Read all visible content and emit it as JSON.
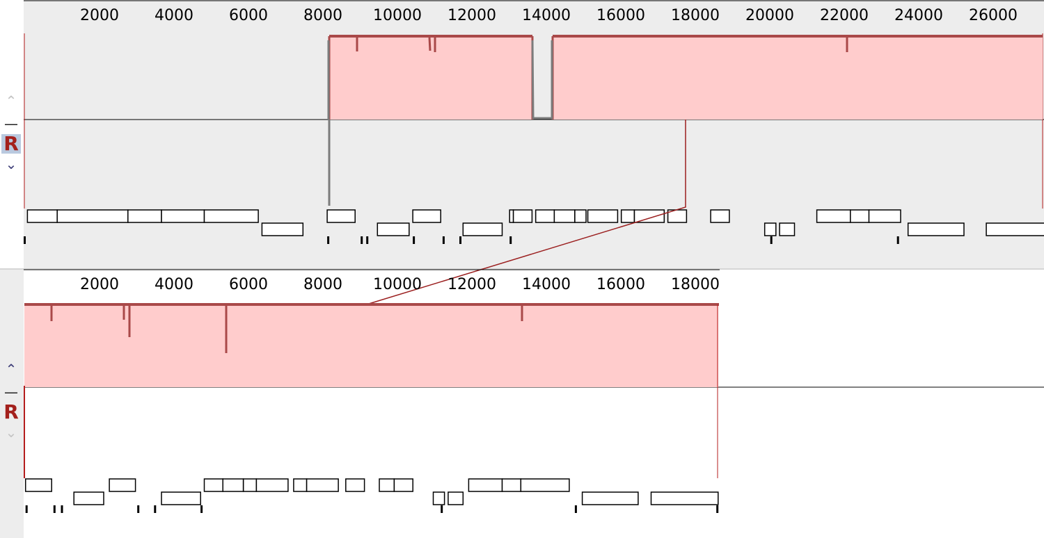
{
  "genomes": [
    {
      "genome_length": 27400,
      "ruler_labels": [
        "2000",
        "4000",
        "6000",
        "8000",
        "10000",
        "12000",
        "14000",
        "16000",
        "18000",
        "20000",
        "22000",
        "24000",
        "26000"
      ],
      "controls": {
        "up_icon": "chevron-up-icon",
        "minus_label": "—",
        "reference_label": "R",
        "down_icon": "chevron-down-icon",
        "selected_reference": true,
        "up_enabled": false,
        "down_enabled": true
      },
      "blocks": [
        {
          "start": 8200,
          "end": 13650,
          "strand": "forward"
        },
        {
          "start": 14200,
          "end": 27400,
          "strand": "forward"
        }
      ],
      "features": {
        "upper": [
          [
            100,
            900
          ],
          [
            900,
            2800
          ],
          [
            2800,
            3700
          ],
          [
            3700,
            4850
          ],
          [
            4850,
            6300
          ],
          [
            8150,
            8900
          ],
          [
            10450,
            11200
          ],
          [
            13050,
            13150
          ],
          [
            13150,
            13650
          ],
          [
            13750,
            14250
          ],
          [
            14250,
            14800
          ],
          [
            14800,
            15100
          ],
          [
            15150,
            15950
          ],
          [
            16050,
            16400
          ],
          [
            16400,
            17200
          ],
          [
            17300,
            17800
          ],
          [
            18450,
            18950
          ],
          [
            21300,
            22200
          ],
          [
            22200,
            22700
          ],
          [
            22700,
            23550
          ]
        ],
        "lower": [
          [
            6400,
            7500
          ],
          [
            9500,
            10350
          ],
          [
            11800,
            12850
          ],
          [
            19900,
            20200
          ],
          [
            20300,
            20700
          ],
          [
            23750,
            25250
          ],
          [
            25850,
            27650
          ]
        ]
      },
      "ticks": [
        0,
        8150,
        9050,
        9200,
        10450,
        11250,
        11700,
        13050,
        20050,
        23450,
        27400
      ],
      "colors": {
        "background": "#ededed",
        "block_fill": "#ffcccc",
        "block_edge": "#a94949",
        "connector": "#9b1f1f"
      }
    },
    {
      "genome_length": 18600,
      "ruler_labels": [
        "2000",
        "4000",
        "6000",
        "8000",
        "10000",
        "12000",
        "14000",
        "16000",
        "18000"
      ],
      "controls": {
        "up_icon": "chevron-up-icon",
        "minus_label": "—",
        "reference_label": "R",
        "down_icon": "chevron-down-icon",
        "selected_reference": false,
        "up_enabled": true,
        "down_enabled": false
      },
      "blocks": [
        {
          "start": 0,
          "end": 18600,
          "strand": "forward"
        }
      ],
      "features": {
        "upper": [
          [
            50,
            750
          ],
          [
            2300,
            3000
          ],
          [
            4850,
            5350
          ],
          [
            5350,
            5900
          ],
          [
            5900,
            6250
          ],
          [
            6250,
            7100
          ],
          [
            7250,
            7600
          ],
          [
            7600,
            8450
          ],
          [
            8650,
            9150
          ],
          [
            9550,
            9950
          ],
          [
            9950,
            10450
          ],
          [
            11950,
            12850
          ],
          [
            12850,
            13350
          ],
          [
            13350,
            14650
          ]
        ],
        "lower": [
          [
            1350,
            2150
          ],
          [
            3700,
            4750
          ],
          [
            11000,
            11300
          ],
          [
            11400,
            11800
          ],
          [
            15000,
            16500
          ],
          [
            16850,
            18650
          ]
        ]
      },
      "ticks": [
        50,
        800,
        1000,
        3050,
        3500,
        4750,
        11200,
        14800,
        18600
      ],
      "colors": {
        "background": "#ffffff",
        "side_background": "#ededed",
        "block_fill": "#ffcccc",
        "block_edge": "#a94949"
      }
    }
  ]
}
